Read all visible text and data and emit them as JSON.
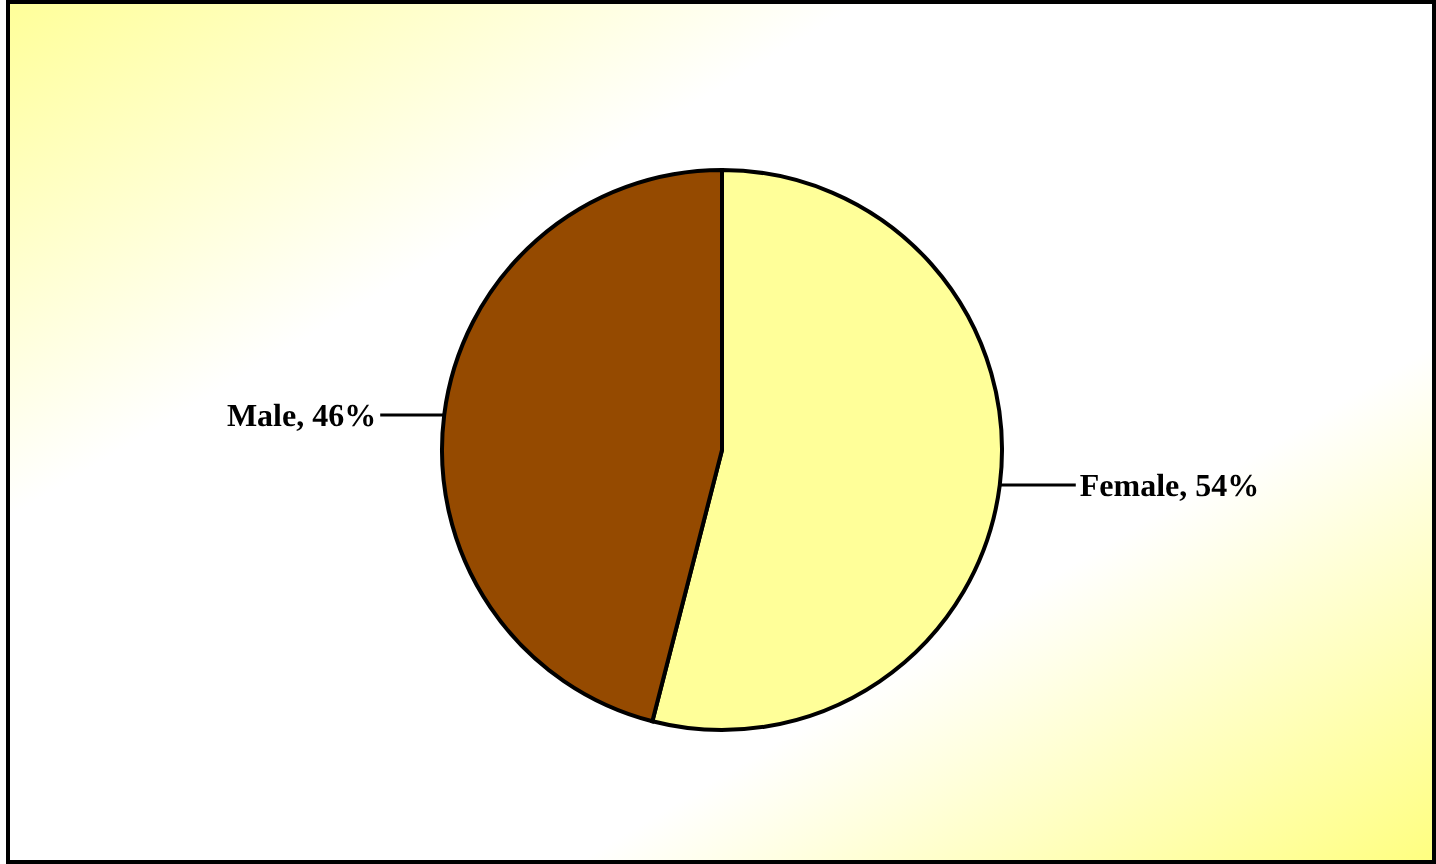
{
  "chart_data": {
    "type": "pie",
    "categories": [
      "Female",
      "Male"
    ],
    "values": [
      54,
      46
    ],
    "colors": [
      "#ffff99",
      "#954a00"
    ],
    "value_labels": [
      "54%",
      "46%"
    ]
  }
}
